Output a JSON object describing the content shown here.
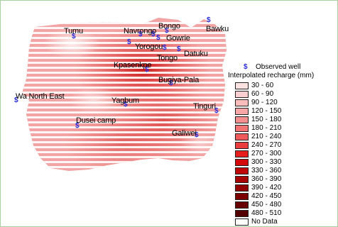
{
  "map": {
    "places": [
      {
        "name": "Tumu"
      },
      {
        "name": "Navrongo"
      },
      {
        "name": "Bongo"
      },
      {
        "name": "Bawku"
      },
      {
        "name": "Gowrie"
      },
      {
        "name": "Yorogou"
      },
      {
        "name": "Tongo"
      },
      {
        "name": "Datuku"
      },
      {
        "name": "Kpasenkpe"
      },
      {
        "name": "Bugiya-Pala"
      },
      {
        "name": "Wa North East"
      },
      {
        "name": "Yagbum"
      },
      {
        "name": "Tinguri"
      },
      {
        "name": "Dusei camp"
      },
      {
        "name": "Galiwei"
      }
    ],
    "well_symbol": "$"
  },
  "legend": {
    "well_label": "Observed well",
    "title": "Interpolated recharge (mm)",
    "classes": [
      {
        "label": "30 - 60",
        "color": "#fde2e2"
      },
      {
        "label": "60 - 90",
        "color": "#fcd0d0"
      },
      {
        "label": "90 - 120",
        "color": "#fbbcbc"
      },
      {
        "label": "120 - 150",
        "color": "#f8a6a6"
      },
      {
        "label": "150 - 180",
        "color": "#f58f8f"
      },
      {
        "label": "180 - 210",
        "color": "#f27474"
      },
      {
        "label": "210 - 240",
        "color": "#ee5a5a"
      },
      {
        "label": "240 - 270",
        "color": "#ea3e3e"
      },
      {
        "label": "270 - 300",
        "color": "#e51e1e"
      },
      {
        "label": "300 - 330",
        "color": "#d40a0a"
      },
      {
        "label": "330 - 360",
        "color": "#bf0707"
      },
      {
        "label": "360 - 390",
        "color": "#a80404"
      },
      {
        "label": "390 - 420",
        "color": "#920303"
      },
      {
        "label": "420 - 450",
        "color": "#7c0202"
      },
      {
        "label": "450 - 480",
        "color": "#680101"
      },
      {
        "label": "480 - 510",
        "color": "#530000"
      },
      {
        "label": "No Data",
        "color": "#ffffff"
      }
    ]
  }
}
